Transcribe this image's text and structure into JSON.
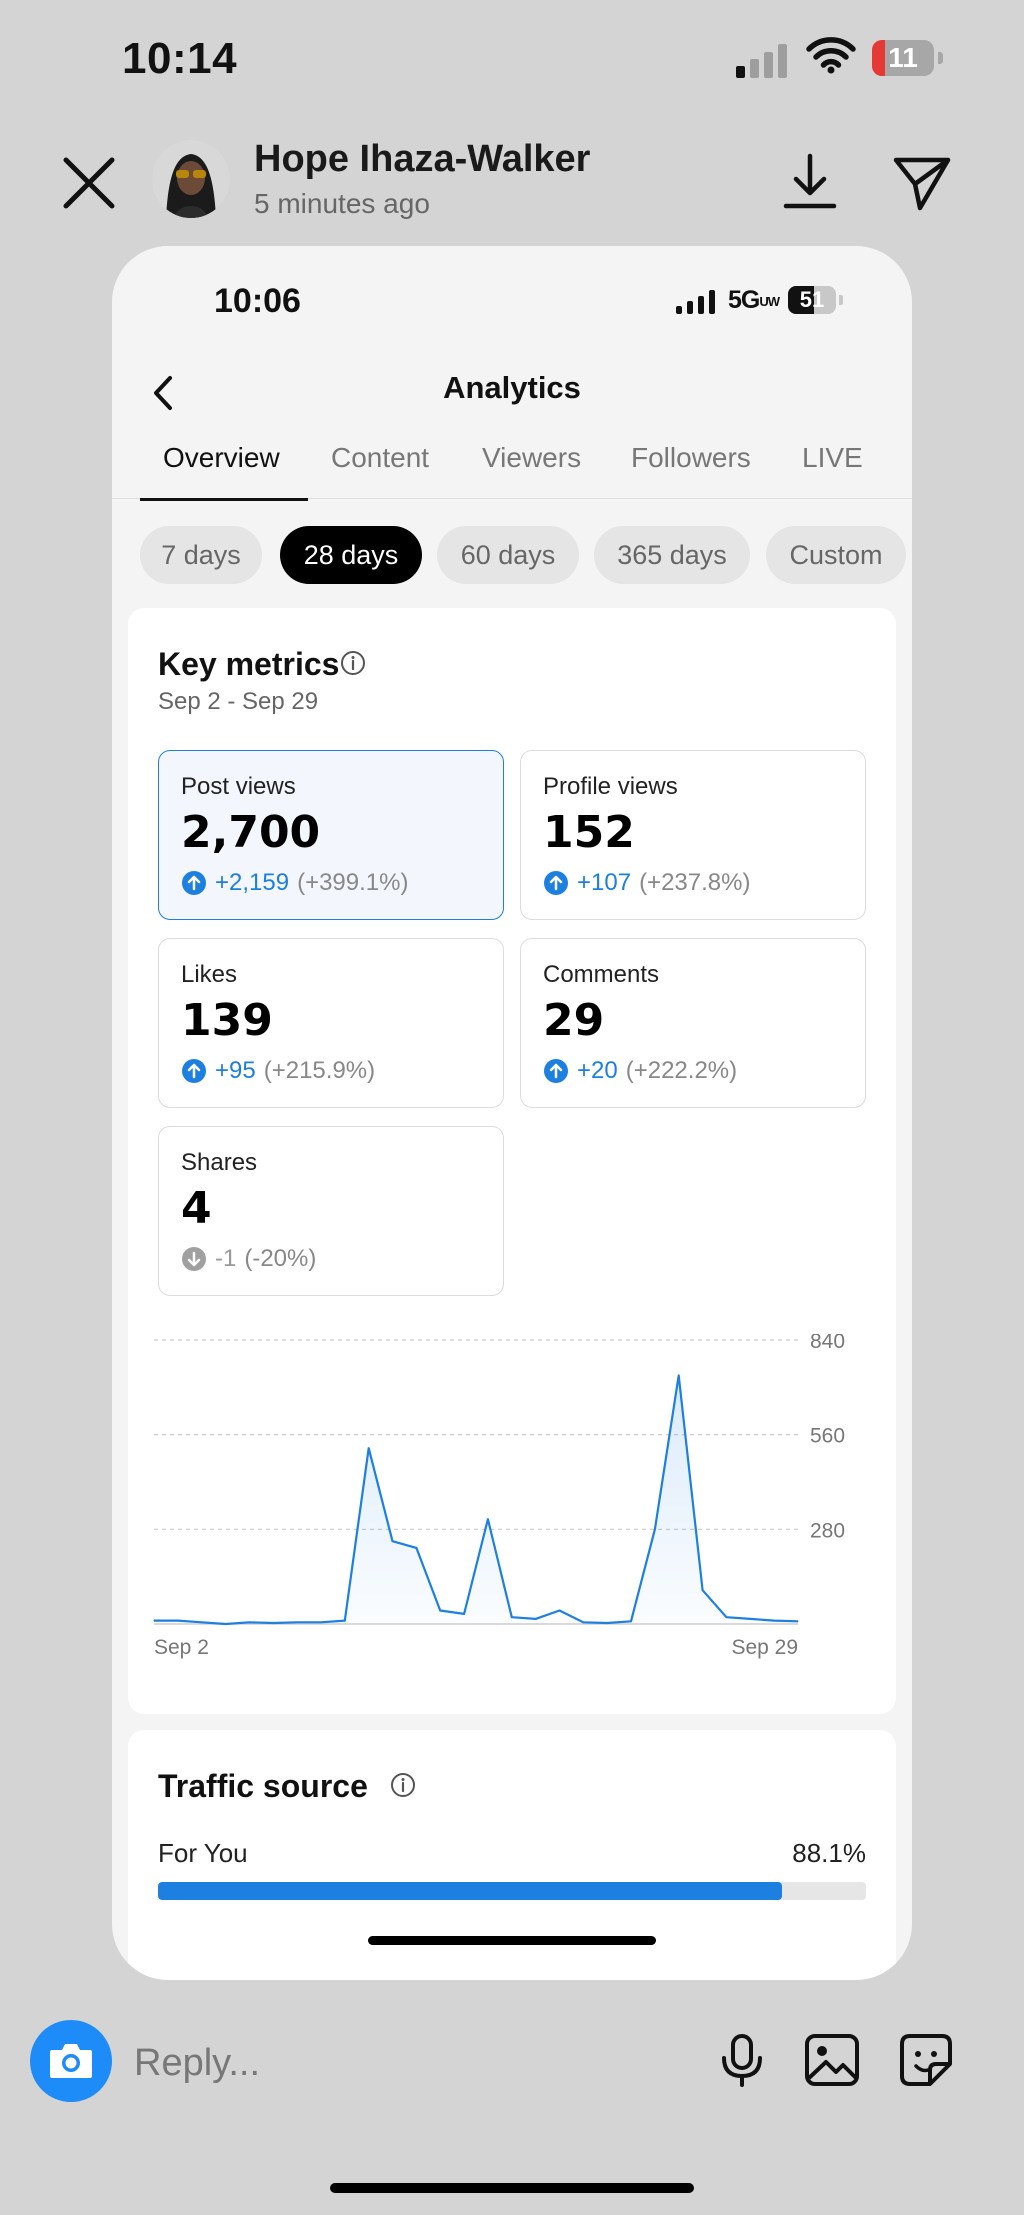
{
  "status_bar": {
    "time": "10:14",
    "battery": "11"
  },
  "story": {
    "author": "Hope Ihaza-Walker",
    "time_ago": "5 minutes ago"
  },
  "screenshot": {
    "status_bar": {
      "time": "10:06",
      "network": "5G",
      "network_sub": "UW",
      "battery": "51"
    },
    "title": "Analytics",
    "tabs": [
      "Overview",
      "Content",
      "Viewers",
      "Followers",
      "LIVE"
    ],
    "active_tab": "Overview",
    "ranges": [
      "7 days",
      "28 days",
      "60 days",
      "365 days",
      "Custom"
    ],
    "active_range": "28 days",
    "key_metrics": {
      "title": "Key metrics",
      "date_range": "Sep 2 - Sep 29",
      "items": [
        {
          "label": "Post views",
          "value": "2,700",
          "delta": "+2,159",
          "pct": "(+399.1%)",
          "direction": "up",
          "selected": true
        },
        {
          "label": "Profile views",
          "value": "152",
          "delta": "+107",
          "pct": "(+237.8%)",
          "direction": "up",
          "selected": false
        },
        {
          "label": "Likes",
          "value": "139",
          "delta": "+95",
          "pct": "(+215.9%)",
          "direction": "up",
          "selected": false
        },
        {
          "label": "Comments",
          "value": "29",
          "delta": "+20",
          "pct": "(+222.2%)",
          "direction": "up",
          "selected": false
        },
        {
          "label": "Shares",
          "value": "4",
          "delta": "-1",
          "pct": "(-20%)",
          "direction": "down",
          "selected": false
        }
      ]
    },
    "traffic_source": {
      "title": "Traffic source",
      "items": [
        {
          "label": "For You",
          "value": "88.1%",
          "fraction": 0.881
        }
      ]
    }
  },
  "chart_data": {
    "type": "line",
    "x_labels": [
      "Sep 2",
      "Sep 29"
    ],
    "y_ticks": [
      280,
      560,
      840
    ],
    "ylim": [
      0,
      840
    ],
    "grid": "dashed horizontal",
    "values": [
      10,
      10,
      5,
      0,
      5,
      3,
      5,
      5,
      10,
      520,
      245,
      225,
      40,
      30,
      310,
      20,
      15,
      40,
      5,
      3,
      8,
      280,
      735,
      100,
      20,
      15,
      10,
      8
    ],
    "color": "#1d7fe0"
  },
  "reply": {
    "placeholder": "Reply..."
  },
  "colors": {
    "accent": "#1d7fe0",
    "camera": "#1d8cf8",
    "battery_low": "#e53935"
  }
}
